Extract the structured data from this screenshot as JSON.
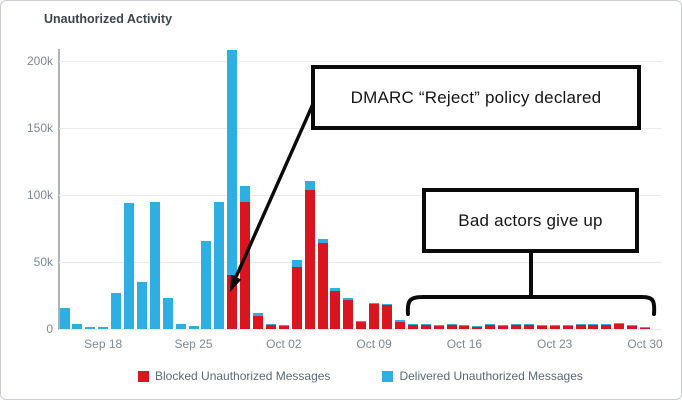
{
  "title": "Unauthorized Activity",
  "legend": {
    "items": [
      {
        "label": "Blocked Unauthorized Messages",
        "color": "#D9161F"
      },
      {
        "label": "Delivered Unauthorized Messages",
        "color": "#2EAFE4"
      }
    ]
  },
  "annotations": {
    "dmarc_label": "DMARC “Reject” policy declared",
    "bad_actors_label": "Bad actors give up"
  },
  "chart_data": {
    "type": "bar",
    "stacked": true,
    "title": "Unauthorized Activity",
    "values_unit": "thousands of messages",
    "grid": true,
    "legend_position": "bottom",
    "ylim_thousands": [
      0,
      210
    ],
    "x": [
      "Sep 15",
      "Sep 16",
      "Sep 17",
      "Sep 18",
      "Sep 19",
      "Sep 20",
      "Sep 21",
      "Sep 22",
      "Sep 23",
      "Sep 24",
      "Sep 25",
      "Sep 26",
      "Sep 27",
      "Sep 28",
      "Sep 29",
      "Sep 30",
      "Oct 01",
      "Oct 02",
      "Oct 03",
      "Oct 04",
      "Oct 05",
      "Oct 06",
      "Oct 07",
      "Oct 08",
      "Oct 09",
      "Oct 10",
      "Oct 11",
      "Oct 12",
      "Oct 13",
      "Oct 14",
      "Oct 15",
      "Oct 16",
      "Oct 17",
      "Oct 18",
      "Oct 19",
      "Oct 20",
      "Oct 21",
      "Oct 22",
      "Oct 23",
      "Oct 24",
      "Oct 25",
      "Oct 26",
      "Oct 27",
      "Oct 28",
      "Oct 29",
      "Oct 30"
    ],
    "series": [
      {
        "name": "Blocked Unauthorized Messages",
        "color": "#D9161F",
        "values": [
          0,
          0,
          0,
          0,
          0,
          0,
          0,
          0,
          0,
          0,
          0,
          0,
          0,
          40,
          95,
          10,
          3,
          2,
          46,
          104,
          64,
          28,
          22,
          5,
          19,
          18,
          5,
          3,
          3,
          2,
          3,
          2,
          1.5,
          3,
          2,
          3,
          3,
          2,
          2,
          2.5,
          3,
          3,
          3,
          4,
          2,
          1
        ]
      },
      {
        "name": "Delivered Unauthorized Messages",
        "color": "#2EAFE4",
        "values": [
          16,
          4,
          1.5,
          1.5,
          27,
          94,
          35,
          95,
          23,
          4,
          2.5,
          66,
          95,
          168,
          12,
          2,
          0.5,
          0.5,
          5,
          7,
          3,
          2,
          1.5,
          0.5,
          1,
          1,
          1.5,
          0.5,
          1,
          1,
          0.5,
          0.5,
          0.5,
          0.5,
          0.5,
          1,
          0.5,
          1,
          0.5,
          0.5,
          0.5,
          0.5,
          0.5,
          0.5,
          0.5,
          0.3
        ]
      }
    ],
    "x_tick_labels": [
      "Sep 18",
      "Sep 25",
      "Oct 02",
      "Oct 09",
      "Oct 16",
      "Oct 23",
      "Oct 30"
    ],
    "y_ticks": [
      {
        "label": "0",
        "value": 0
      },
      {
        "label": "50k",
        "value": 50
      },
      {
        "label": "100k",
        "value": 100
      },
      {
        "label": "150k",
        "value": 150
      },
      {
        "label": "200k",
        "value": 200
      }
    ]
  }
}
